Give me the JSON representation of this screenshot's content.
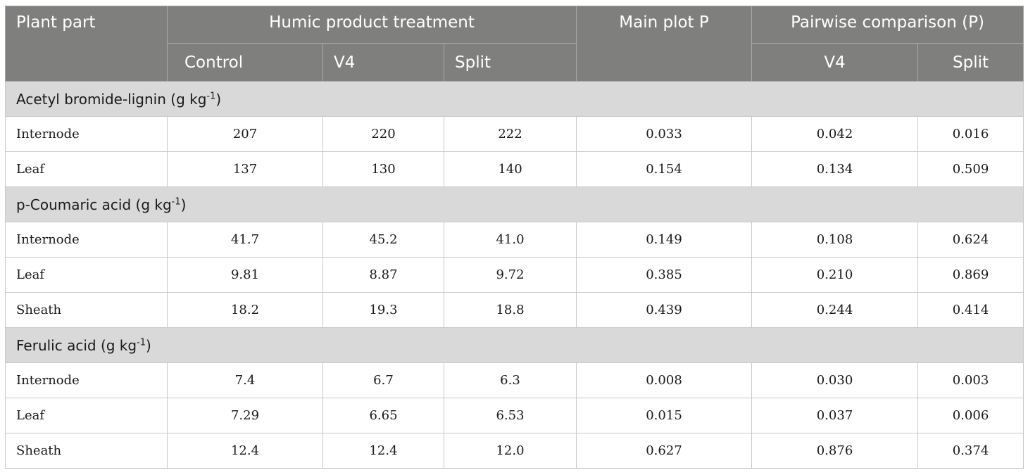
{
  "header": {
    "plant_part": "Plant part",
    "humic_group": "Humic product treatment",
    "main_plot": "Main plot P",
    "pairwise_group": "Pairwise comparison (P)",
    "control": "Control",
    "v4": "V4",
    "split": "Split",
    "pw_v4": "V4",
    "pw_split": "Split"
  },
  "sections": [
    {
      "title": "Acetyl bromide-lignin (g kg",
      "sup": "-1",
      "close": ")",
      "rows": [
        {
          "part": "Internode",
          "control": "207",
          "v4": "220",
          "split": "222",
          "main_p": "0.033",
          "pw_v4": "0.042",
          "pw_split": "0.016"
        },
        {
          "part": "Leaf",
          "control": "137",
          "v4": "130",
          "split": "140",
          "main_p": "0.154",
          "pw_v4": "0.134",
          "pw_split": "0.509"
        }
      ]
    },
    {
      "title": "p-Coumaric acid (g kg",
      "sup": "-1",
      "close": ")",
      "rows": [
        {
          "part": "Internode",
          "control": "41.7",
          "v4": "45.2",
          "split": "41.0",
          "main_p": "0.149",
          "pw_v4": "0.108",
          "pw_split": "0.624"
        },
        {
          "part": "Leaf",
          "control": "9.81",
          "v4": "8.87",
          "split": "9.72",
          "main_p": "0.385",
          "pw_v4": "0.210",
          "pw_split": "0.869"
        },
        {
          "part": "Sheath",
          "control": "18.2",
          "v4": "19.3",
          "split": "18.8",
          "main_p": "0.439",
          "pw_v4": "0.244",
          "pw_split": "0.414"
        }
      ]
    },
    {
      "title": "Ferulic acid (g kg",
      "sup": "-1",
      "close": ")",
      "rows": [
        {
          "part": "Internode",
          "control": "7.4",
          "v4": "6.7",
          "split": "6.3",
          "main_p": "0.008",
          "pw_v4": "0.030",
          "pw_split": "0.003"
        },
        {
          "part": "Leaf",
          "control": "7.29",
          "v4": "6.65",
          "split": "6.53",
          "main_p": "0.015",
          "pw_v4": "0.037",
          "pw_split": "0.006"
        },
        {
          "part": "Sheath",
          "control": "12.4",
          "v4": "12.4",
          "split": "12.0",
          "main_p": "0.627",
          "pw_v4": "0.876",
          "pw_split": "0.374"
        }
      ]
    }
  ]
}
